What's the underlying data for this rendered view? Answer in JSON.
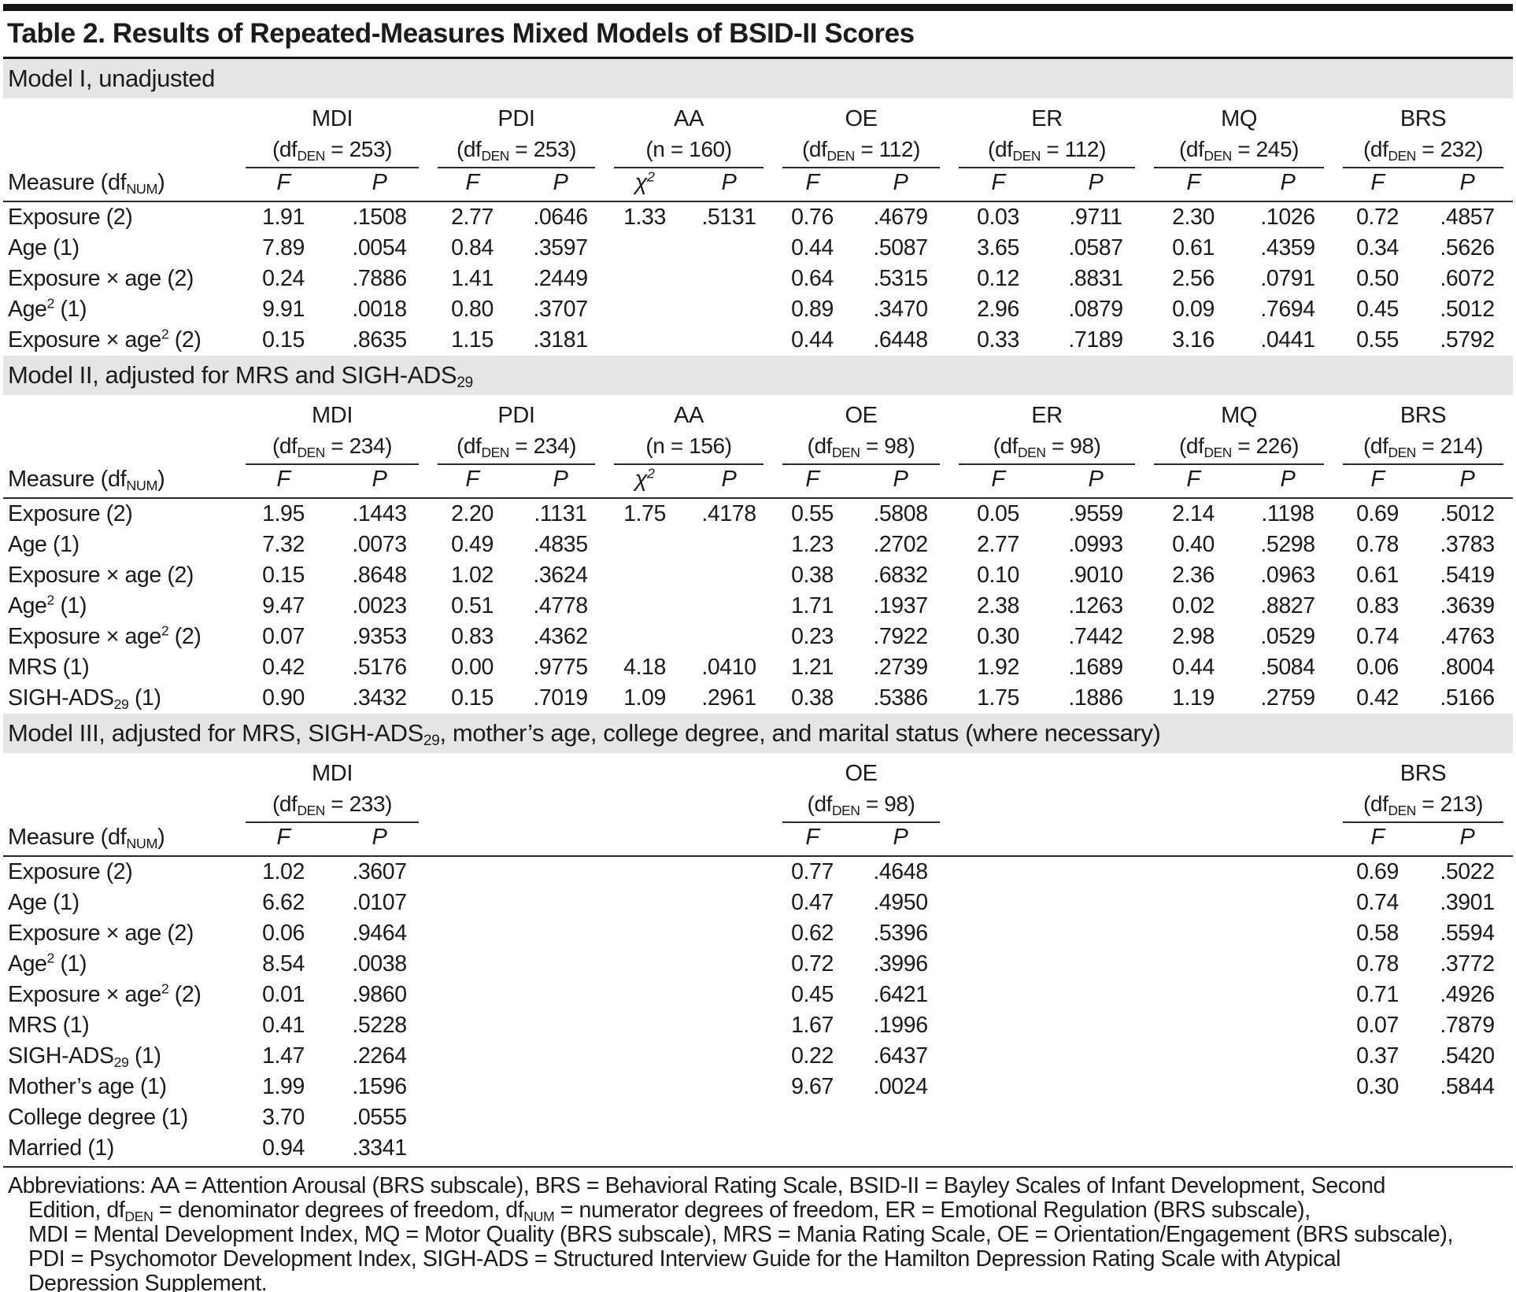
{
  "table": {
    "title": "Table 2. Results of Repeated-Measures Mixed Models of BSID-II Scores",
    "measure_header": "Measure (df~NUM~)",
    "p_header": "P",
    "models": [
      {
        "section_label": "Model I, unadjusted",
        "groups": [
          {
            "name": "MDI",
            "sub": "(df~DEN~ = 253)",
            "stat": "F"
          },
          {
            "name": "PDI",
            "sub": "(df~DEN~ = 253)",
            "stat": "F"
          },
          {
            "name": "AA",
            "sub": "(n = 160)",
            "stat": "χ^2^"
          },
          {
            "name": "OE",
            "sub": "(df~DEN~ = 112)",
            "stat": "F"
          },
          {
            "name": "ER",
            "sub": "(df~DEN~ = 112)",
            "stat": "F"
          },
          {
            "name": "MQ",
            "sub": "(df~DEN~ = 245)",
            "stat": "F"
          },
          {
            "name": "BRS",
            "sub": "(df~DEN~ = 232)",
            "stat": "F"
          }
        ],
        "rows": [
          {
            "measure": "Exposure (2)",
            "values": [
              "1.91",
              ".1508",
              "2.77",
              ".0646",
              "1.33",
              ".5131",
              "0.76",
              ".4679",
              "0.03",
              ".9711",
              "2.30",
              ".1026",
              "0.72",
              ".4857"
            ]
          },
          {
            "measure": "Age (1)",
            "values": [
              "7.89",
              ".0054",
              "0.84",
              ".3597",
              "",
              "",
              "0.44",
              ".5087",
              "3.65",
              ".0587",
              "0.61",
              ".4359",
              "0.34",
              ".5626"
            ]
          },
          {
            "measure": "Exposure × age (2)",
            "values": [
              "0.24",
              ".7886",
              "1.41",
              ".2449",
              "",
              "",
              "0.64",
              ".5315",
              "0.12",
              ".8831",
              "2.56",
              ".0791",
              "0.50",
              ".6072"
            ]
          },
          {
            "measure": "Age^2^ (1)",
            "values": [
              "9.91",
              ".0018",
              "0.80",
              ".3707",
              "",
              "",
              "0.89",
              ".3470",
              "2.96",
              ".0879",
              "0.09",
              ".7694",
              "0.45",
              ".5012"
            ]
          },
          {
            "measure": "Exposure × age^2^ (2)",
            "values": [
              "0.15",
              ".8635",
              "1.15",
              ".3181",
              "",
              "",
              "0.44",
              ".6448",
              "0.33",
              ".7189",
              "3.16",
              ".0441",
              "0.55",
              ".5792"
            ]
          }
        ]
      },
      {
        "section_label": "Model II, adjusted for MRS and SIGH-ADS~29~",
        "groups": [
          {
            "name": "MDI",
            "sub": "(df~DEN~ = 234)",
            "stat": "F"
          },
          {
            "name": "PDI",
            "sub": "(df~DEN~ = 234)",
            "stat": "F"
          },
          {
            "name": "AA",
            "sub": "(n = 156)",
            "stat": "χ^2^"
          },
          {
            "name": "OE",
            "sub": "(df~DEN~ = 98)",
            "stat": "F"
          },
          {
            "name": "ER",
            "sub": "(df~DEN~ = 98)",
            "stat": "F"
          },
          {
            "name": "MQ",
            "sub": "(df~DEN~ = 226)",
            "stat": "F"
          },
          {
            "name": "BRS",
            "sub": "(df~DEN~ = 214)",
            "stat": "F"
          }
        ],
        "rows": [
          {
            "measure": "Exposure (2)",
            "values": [
              "1.95",
              ".1443",
              "2.20",
              ".1131",
              "1.75",
              ".4178",
              "0.55",
              ".5808",
              "0.05",
              ".9559",
              "2.14",
              ".1198",
              "0.69",
              ".5012"
            ]
          },
          {
            "measure": "Age (1)",
            "values": [
              "7.32",
              ".0073",
              "0.49",
              ".4835",
              "",
              "",
              "1.23",
              ".2702",
              "2.77",
              ".0993",
              "0.40",
              ".5298",
              "0.78",
              ".3783"
            ]
          },
          {
            "measure": "Exposure × age (2)",
            "values": [
              "0.15",
              ".8648",
              "1.02",
              ".3624",
              "",
              "",
              "0.38",
              ".6832",
              "0.10",
              ".9010",
              "2.36",
              ".0963",
              "0.61",
              ".5419"
            ]
          },
          {
            "measure": "Age^2^ (1)",
            "values": [
              "9.47",
              ".0023",
              "0.51",
              ".4778",
              "",
              "",
              "1.71",
              ".1937",
              "2.38",
              ".1263",
              "0.02",
              ".8827",
              "0.83",
              ".3639"
            ]
          },
          {
            "measure": "Exposure × age^2^ (2)",
            "values": [
              "0.07",
              ".9353",
              "0.83",
              ".4362",
              "",
              "",
              "0.23",
              ".7922",
              "0.30",
              ".7442",
              "2.98",
              ".0529",
              "0.74",
              ".4763"
            ]
          },
          {
            "measure": "MRS (1)",
            "values": [
              "0.42",
              ".5176",
              "0.00",
              ".9775",
              "4.18",
              ".0410",
              "1.21",
              ".2739",
              "1.92",
              ".1689",
              "0.44",
              ".5084",
              "0.06",
              ".8004"
            ]
          },
          {
            "measure": "SIGH-ADS~29~ (1)",
            "values": [
              "0.90",
              ".3432",
              "0.15",
              ".7019",
              "1.09",
              ".2961",
              "0.38",
              ".5386",
              "1.75",
              ".1886",
              "1.19",
              ".2759",
              "0.42",
              ".5166"
            ]
          }
        ]
      },
      {
        "section_label": "Model III, adjusted for MRS, SIGH-ADS~29~, mother’s age, college degree, and marital status (where necessary)",
        "groups": [
          {
            "name": "MDI",
            "sub": "(df~DEN~ = 233)",
            "stat": "F"
          },
          null,
          null,
          {
            "name": "OE",
            "sub": "(df~DEN~ = 98)",
            "stat": "F"
          },
          null,
          null,
          {
            "name": "BRS",
            "sub": "(df~DEN~ = 213)",
            "stat": "F"
          }
        ],
        "rows": [
          {
            "measure": "Exposure (2)",
            "values": [
              "1.02",
              ".3607",
              "",
              "",
              "",
              "",
              "0.77",
              ".4648",
              "",
              "",
              "",
              "",
              "0.69",
              ".5022"
            ]
          },
          {
            "measure": "Age (1)",
            "values": [
              "6.62",
              ".0107",
              "",
              "",
              "",
              "",
              "0.47",
              ".4950",
              "",
              "",
              "",
              "",
              "0.74",
              ".3901"
            ]
          },
          {
            "measure": "Exposure × age (2)",
            "values": [
              "0.06",
              ".9464",
              "",
              "",
              "",
              "",
              "0.62",
              ".5396",
              "",
              "",
              "",
              "",
              "0.58",
              ".5594"
            ]
          },
          {
            "measure": "Age^2^ (1)",
            "values": [
              "8.54",
              ".0038",
              "",
              "",
              "",
              "",
              "0.72",
              ".3996",
              "",
              "",
              "",
              "",
              "0.78",
              ".3772"
            ]
          },
          {
            "measure": "Exposure × age^2^ (2)",
            "values": [
              "0.01",
              ".9860",
              "",
              "",
              "",
              "",
              "0.45",
              ".6421",
              "",
              "",
              "",
              "",
              "0.71",
              ".4926"
            ]
          },
          {
            "measure": "MRS (1)",
            "values": [
              "0.41",
              ".5228",
              "",
              "",
              "",
              "",
              "1.67",
              ".1996",
              "",
              "",
              "",
              "",
              "0.07",
              ".7879"
            ]
          },
          {
            "measure": "SIGH-ADS~29~ (1)",
            "values": [
              "1.47",
              ".2264",
              "",
              "",
              "",
              "",
              "0.22",
              ".6437",
              "",
              "",
              "",
              "",
              "0.37",
              ".5420"
            ]
          },
          {
            "measure": "Mother’s age (1)",
            "values": [
              "1.99",
              ".1596",
              "",
              "",
              "",
              "",
              "9.67",
              ".0024",
              "",
              "",
              "",
              "",
              "0.30",
              ".5844"
            ]
          },
          {
            "measure": "College degree (1)",
            "values": [
              "3.70",
              ".0555",
              "",
              "",
              "",
              "",
              "",
              "",
              "",
              "",
              "",
              "",
              "",
              ""
            ]
          },
          {
            "measure": "Married (1)",
            "values": [
              "0.94",
              ".3341",
              "",
              "",
              "",
              "",
              "",
              "",
              "",
              "",
              "",
              "",
              "",
              ""
            ]
          }
        ]
      }
    ],
    "footnote_lines": [
      "Abbreviations: AA = Attention Arousal (BRS subscale), BRS = Behavioral Rating Scale, BSID-II = Bayley Scales of Infant Development, Second",
      "Edition, df~DEN~ = denominator degrees of freedom,  df~NUM~ = numerator degrees of freedom,  ER = Emotional Regulation (BRS subscale),",
      "MDI = Mental Development Index, MQ = Motor Quality (BRS subscale), MRS = Mania Rating Scale, OE = Orientation/Engagement (BRS subscale),",
      "PDI = Psychomotor Development Index, SIGH-ADS = Structured Interview Guide for the Hamilton Depression Rating Scale with Atypical",
      "Depression Supplement."
    ]
  }
}
